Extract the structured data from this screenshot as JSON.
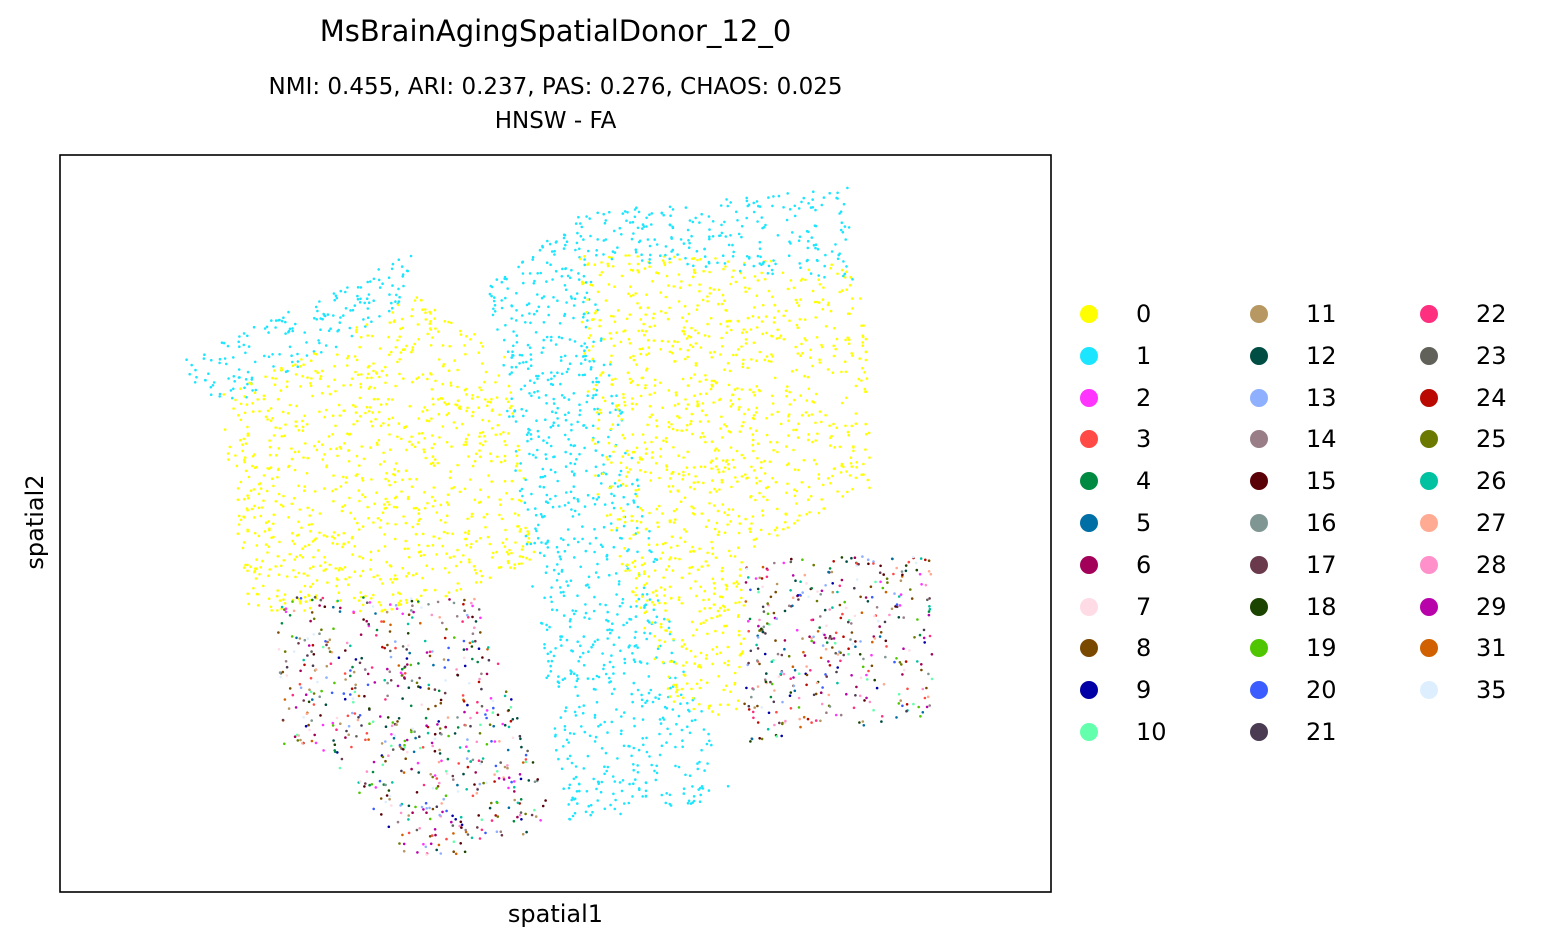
{
  "chart_data": {
    "type": "scatter",
    "title": "MsBrainAgingSpatialDonor_12_0",
    "subtitle": "NMI: 0.455,  ARI: 0.237,  PAS: 0.276,  CHAOS: 0.025",
    "subtitle2": "HNSW - FA",
    "xlabel": "spatial1",
    "ylabel": "spatial2",
    "grid": false,
    "ticks": false,
    "legend_placement": "right, outside axes, 3 columns",
    "legend": [
      {
        "label": "0",
        "color": "#ffff00"
      },
      {
        "label": "1",
        "color": "#1ce6ff"
      },
      {
        "label": "2",
        "color": "#ff34ff"
      },
      {
        "label": "3",
        "color": "#ff4a46"
      },
      {
        "label": "4",
        "color": "#008941"
      },
      {
        "label": "5",
        "color": "#006fa6"
      },
      {
        "label": "6",
        "color": "#a30059"
      },
      {
        "label": "7",
        "color": "#ffdbe5"
      },
      {
        "label": "8",
        "color": "#7a4900"
      },
      {
        "label": "9",
        "color": "#0000a6"
      },
      {
        "label": "10",
        "color": "#63ffac"
      },
      {
        "label": "11",
        "color": "#b79762"
      },
      {
        "label": "12",
        "color": "#004d43"
      },
      {
        "label": "13",
        "color": "#8fb0ff"
      },
      {
        "label": "14",
        "color": "#997d87"
      },
      {
        "label": "15",
        "color": "#5a0007"
      },
      {
        "label": "16",
        "color": "#809693"
      },
      {
        "label": "17",
        "color": "#6a3a4c"
      },
      {
        "label": "18",
        "color": "#1b4400"
      },
      {
        "label": "19",
        "color": "#4fc601"
      },
      {
        "label": "20",
        "color": "#3b5dff"
      },
      {
        "label": "21",
        "color": "#4a3b53"
      },
      {
        "label": "22",
        "color": "#ff2f80"
      },
      {
        "label": "23",
        "color": "#61615a"
      },
      {
        "label": "24",
        "color": "#ba0900"
      },
      {
        "label": "25",
        "color": "#6b7900"
      },
      {
        "label": "26",
        "color": "#00c2a0"
      },
      {
        "label": "27",
        "color": "#ffaa92"
      },
      {
        "label": "28",
        "color": "#ff90c9"
      },
      {
        "label": "29",
        "color": "#b903aa"
      },
      {
        "label": "31",
        "color": "#d16100"
      },
      {
        "label": "35",
        "color": "#ddefff"
      }
    ],
    "regions": [
      {
        "cluster": "1",
        "shape": "top-left cyan band",
        "polygon": [
          [
            0.12,
            0.28
          ],
          [
            0.36,
            0.13
          ],
          [
            0.36,
            0.2
          ],
          [
            0.16,
            0.35
          ]
        ]
      },
      {
        "cluster": "0",
        "shape": "left yellow block",
        "polygon": [
          [
            0.16,
            0.32
          ],
          [
            0.36,
            0.19
          ],
          [
            0.45,
            0.27
          ],
          [
            0.48,
            0.55
          ],
          [
            0.35,
            0.62
          ],
          [
            0.19,
            0.62
          ]
        ]
      },
      {
        "cluster": "1",
        "shape": "middle diagonal cyan band",
        "polygon": [
          [
            0.43,
            0.17
          ],
          [
            0.52,
            0.09
          ],
          [
            0.54,
            0.19
          ],
          [
            0.62,
            0.65
          ],
          [
            0.68,
            0.87
          ],
          [
            0.51,
            0.91
          ],
          [
            0.48,
            0.62
          ]
        ]
      },
      {
        "cluster": "0",
        "shape": "right yellow block",
        "polygon": [
          [
            0.52,
            0.13
          ],
          [
            0.81,
            0.15
          ],
          [
            0.82,
            0.45
          ],
          [
            0.69,
            0.54
          ],
          [
            0.69,
            0.76
          ],
          [
            0.62,
            0.76
          ],
          [
            0.54,
            0.45
          ]
        ]
      },
      {
        "cluster": "1",
        "shape": "top-right cyan band",
        "polygon": [
          [
            0.52,
            0.08
          ],
          [
            0.8,
            0.04
          ],
          [
            0.8,
            0.17
          ],
          [
            0.52,
            0.14
          ]
        ]
      },
      {
        "cluster": "mixed",
        "shape": "bottom-left mixed block",
        "polygon": [
          [
            0.22,
            0.6
          ],
          [
            0.42,
            0.6
          ],
          [
            0.5,
            0.91
          ],
          [
            0.4,
            0.95
          ],
          [
            0.35,
            0.95
          ],
          [
            0.26,
            0.8
          ],
          [
            0.22,
            0.8
          ]
        ]
      },
      {
        "cluster": "mixed",
        "shape": "bottom-right mixed block",
        "polygon": [
          [
            0.69,
            0.55
          ],
          [
            0.88,
            0.54
          ],
          [
            0.88,
            0.76
          ],
          [
            0.69,
            0.8
          ]
        ]
      }
    ]
  }
}
